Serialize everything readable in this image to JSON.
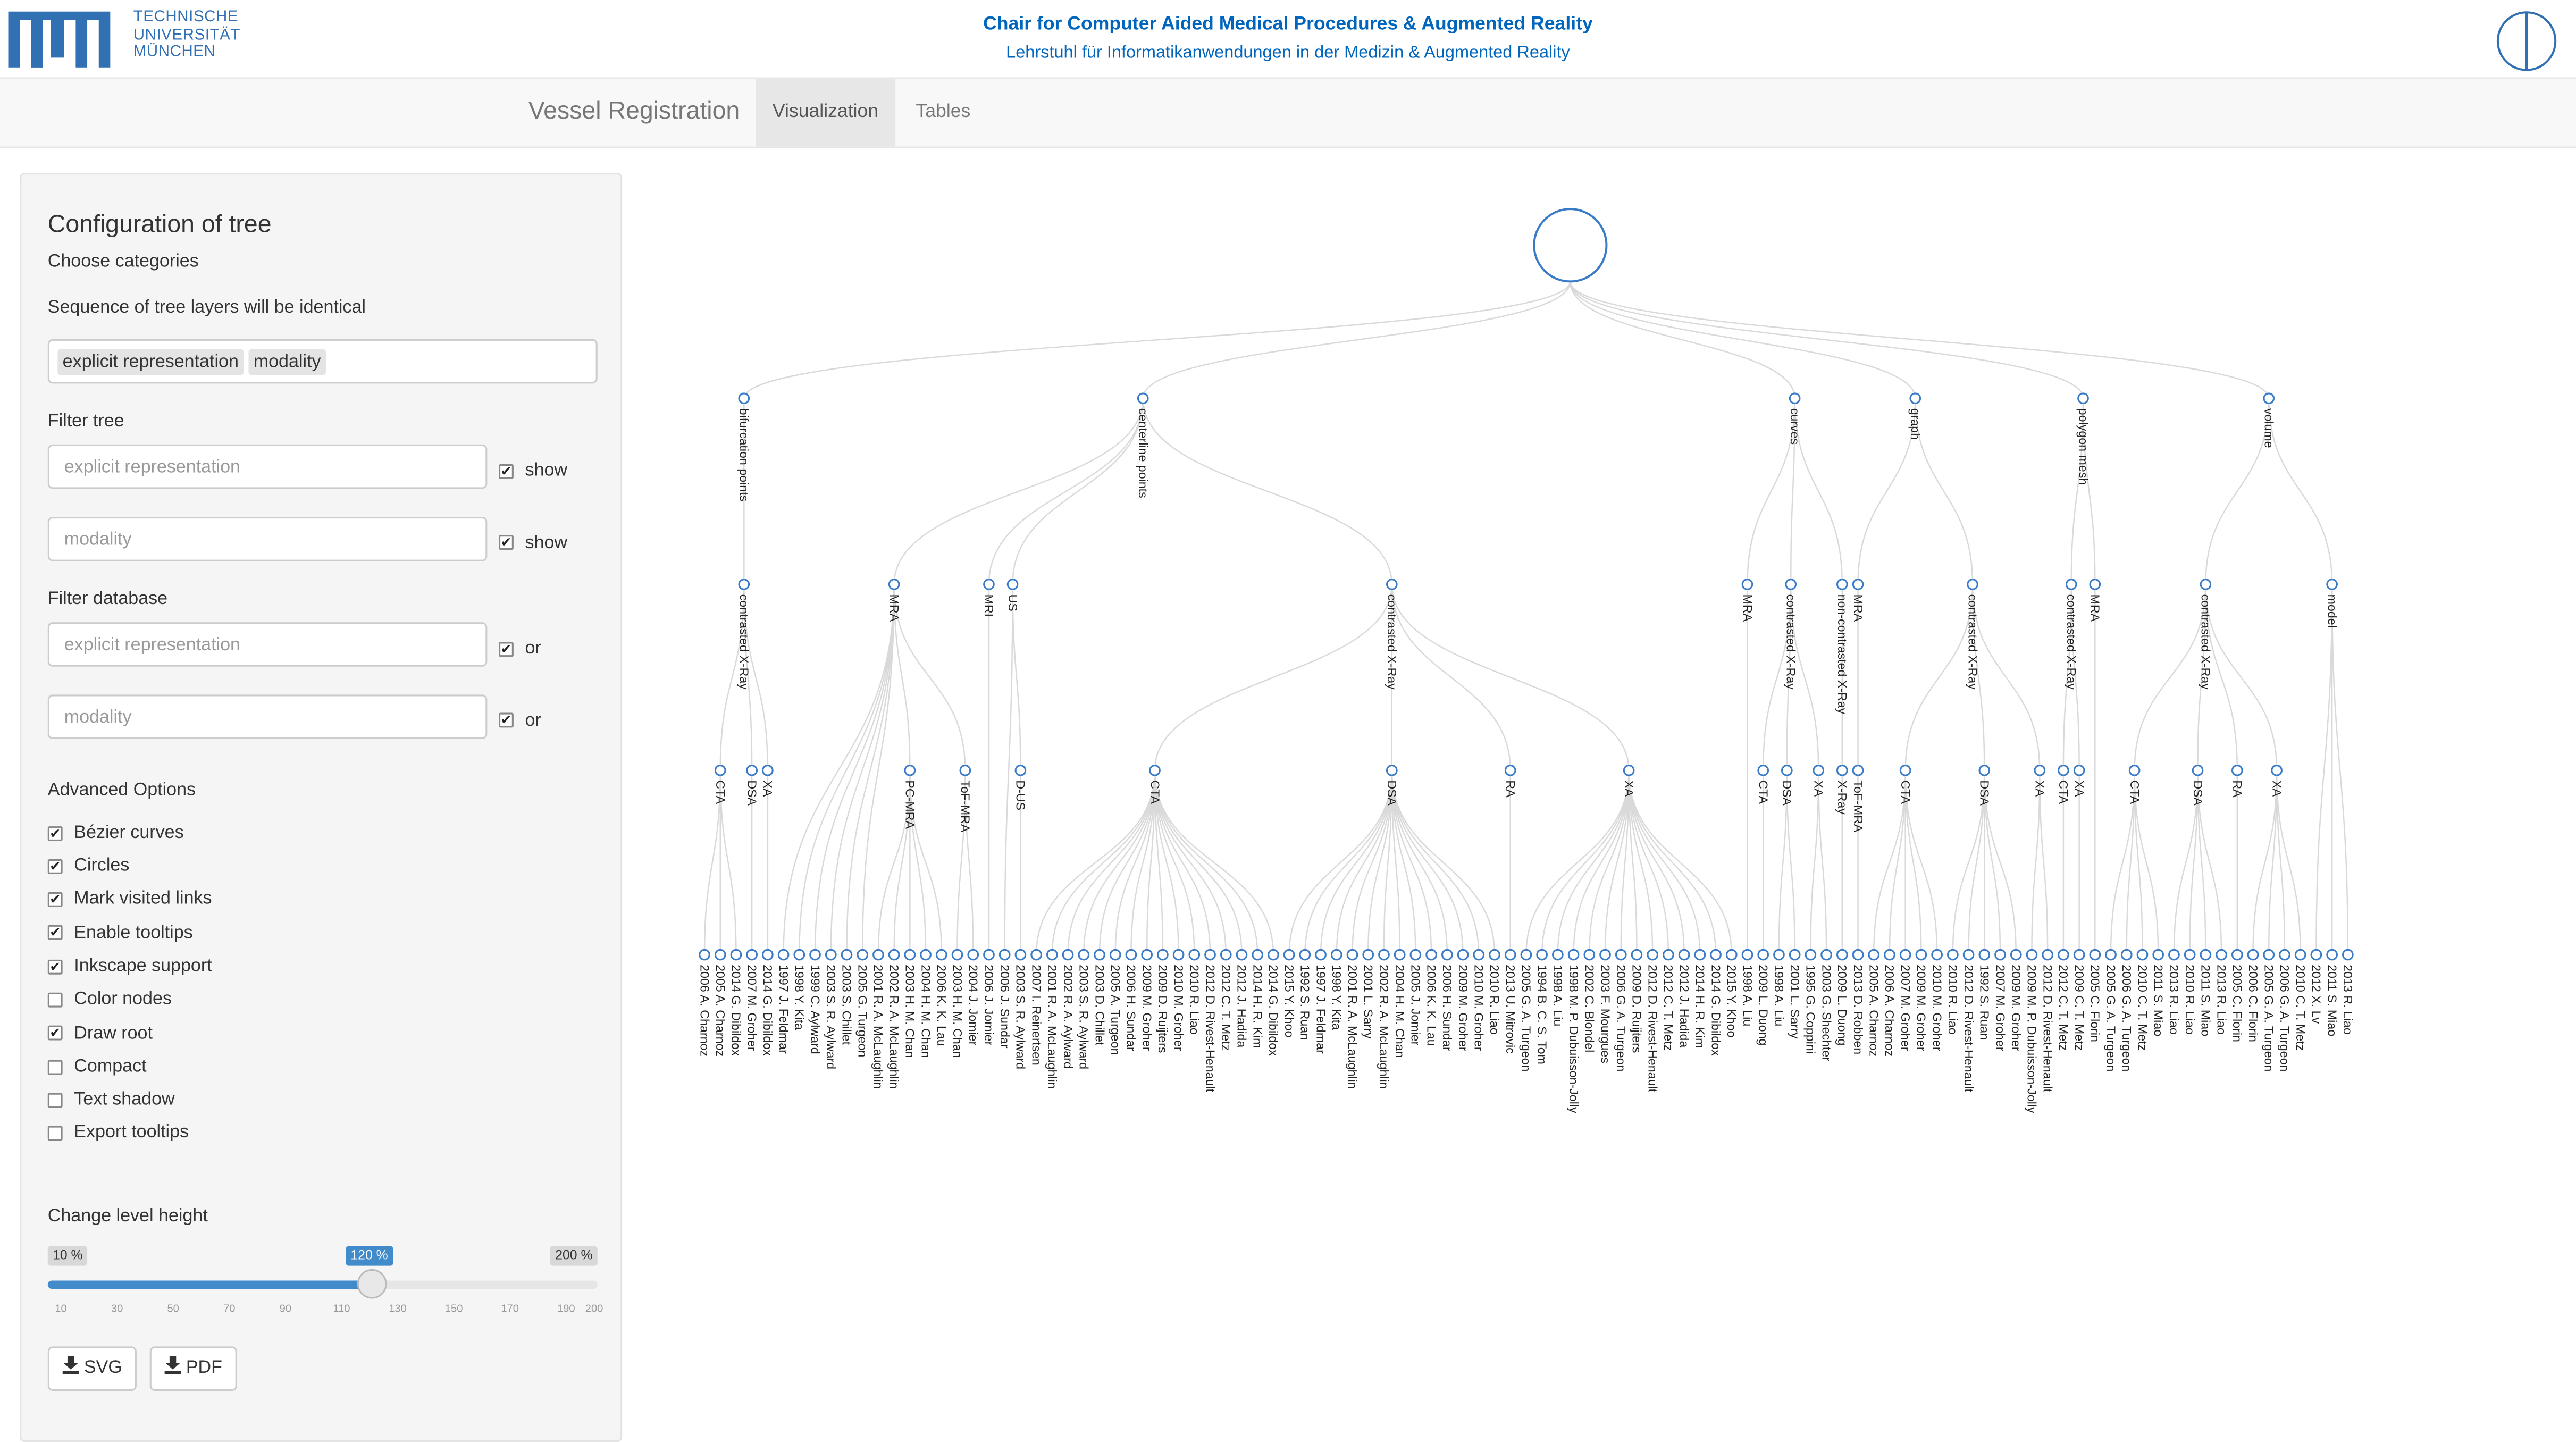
{
  "header": {
    "logo_text": [
      "TECHNISCHE",
      "UNIVERSITÄT",
      "MÜNCHEN"
    ],
    "title": "Chair for Computer Aided Medical Procedures & Augmented Reality",
    "subtitle": "Lehrstuhl für Informatikanwendungen in der Medizin & Augmented Reality"
  },
  "navbar": {
    "brand": "Vessel Registration",
    "tabs": [
      {
        "label": "Visualization",
        "active": true
      },
      {
        "label": "Tables",
        "active": false
      }
    ]
  },
  "config": {
    "title": "Configuration of tree",
    "choose_categories": "Choose categories",
    "sequence_note": "Sequence of tree layers will be identical",
    "selected_categories": [
      "explicit representation",
      "modality"
    ],
    "filter_tree_label": "Filter tree",
    "filter_tree": [
      {
        "placeholder": "explicit representation",
        "value": "",
        "check_label": "show",
        "checked": true
      },
      {
        "placeholder": "modality",
        "value": "",
        "check_label": "show",
        "checked": true
      }
    ],
    "filter_db_label": "Filter database",
    "filter_db": [
      {
        "placeholder": "explicit representation",
        "value": "",
        "check_label": "or",
        "checked": true
      },
      {
        "placeholder": "modality",
        "value": "",
        "check_label": "or",
        "checked": true
      }
    ],
    "advanced_label": "Advanced Options",
    "options": [
      {
        "label": "Bézier curves",
        "checked": true
      },
      {
        "label": "Circles",
        "checked": true
      },
      {
        "label": "Mark visited links",
        "checked": true
      },
      {
        "label": "Enable tooltips",
        "checked": true
      },
      {
        "label": "Inkscape support",
        "checked": true
      },
      {
        "label": "Color nodes",
        "checked": false
      },
      {
        "label": "Draw root",
        "checked": true
      },
      {
        "label": "Compact",
        "checked": false
      },
      {
        "label": "Text shadow",
        "checked": false
      },
      {
        "label": "Export tooltips",
        "checked": false
      }
    ],
    "level_height": {
      "label": "Change level height",
      "min": 10,
      "max": 200,
      "value": 120,
      "min_label": "10 %",
      "max_label": "200 %",
      "value_label": "120 %",
      "ticks": [
        "10",
        "30",
        "50",
        "70",
        "90",
        "110",
        "130",
        "150",
        "170",
        "190",
        "200"
      ]
    },
    "buttons": {
      "svg": "SVG",
      "pdf": "PDF"
    }
  },
  "tree": {
    "colors": {
      "node": "#3a7bc8",
      "link": "#d9d9d9",
      "accent": "#428bca",
      "tum_blue": "#3070b3"
    },
    "groups": [
      {
        "name": "bifurcation points",
        "children": [
          {
            "name": "contrasted X-Ray",
            "children": [
              {
                "name": "CTA",
                "leaves": [
                  "2006 A. Charnoz",
                  "2005 A. Charnoz",
                  "2014 G. Dibildox"
                ]
              },
              {
                "name": "DSA",
                "leaves": [
                  "2007 M. Groher"
                ]
              },
              {
                "name": "XA",
                "leaves": [
                  "2014 G. Dibildox"
                ]
              }
            ]
          }
        ]
      },
      {
        "name": "centerline points",
        "children": [
          {
            "name": "MRA",
            "children": [
              {
                "name": "",
                "leaves": [
                  "1997 J. Feldmar",
                  "1998 Y. Kita",
                  "1999 C. Aylward",
                  "2003 S. R. Aylward",
                  "2003 S. Chillet",
                  "2005 G. Turgeon"
                ]
              },
              {
                "name": "PC-MRA",
                "leaves": [
                  "2001 R. A. McLaughlin",
                  "2002 R. A. McLaughlin",
                  "2003 H. M. Chan",
                  "2004 H. M. Chan",
                  "2006 K. K. Lau"
                ]
              },
              {
                "name": "ToF-MRA",
                "leaves": [
                  "2003 H. M. Chan",
                  "2004 J. Jomier"
                ]
              }
            ]
          },
          {
            "name": "MRI",
            "children": [
              {
                "name": "",
                "leaves": [
                  "2006 J. Jomier"
                ]
              }
            ]
          },
          {
            "name": "US",
            "children": [
              {
                "name": "",
                "leaves": [
                  "2006 J. Sundar"
                ]
              },
              {
                "name": "D-US",
                "leaves": [
                  "2003 S. R. Aylward"
                ]
              }
            ]
          },
          {
            "name": "contrasted X-Ray",
            "children": [
              {
                "name": "CTA",
                "leaves": [
                  "2007 I. Reinertsen",
                  "2001 R. A. McLaughlin",
                  "2002 R. A. Aylward",
                  "2003 S. R. Aylward",
                  "2003 D. Chillet",
                  "2005 A. Turgeon",
                  "2006 H. Sundar",
                  "2009 M. Groher",
                  "2009 D. Ruijters",
                  "2010 M. Groher",
                  "2010 R. Liao",
                  "2012 D. Rivest-Henault",
                  "2012 C. T. Metz",
                  "2012 J. Hadida",
                  "2014 H. R. Kim",
                  "2014 G. Dibildox"
                ]
              },
              {
                "name": "DSA",
                "leaves": [
                  "2015 Y. Khoo",
                  "1992 S. Ruan",
                  "1997 J. Feldmar",
                  "1998 Y. Kita",
                  "2001 R. A. McLaughlin",
                  "2001 L. Sarry",
                  "2002 R. A. McLaughlin",
                  "2004 H. M. Chan",
                  "2005 J. Jomier",
                  "2006 K. K. Lau",
                  "2006 H. Sundar",
                  "2009 M. Groher",
                  "2010 M. Groher",
                  "2010 R. Liao"
                ]
              },
              {
                "name": "RA",
                "leaves": [
                  "2013 U. Mitrovic"
                ]
              },
              {
                "name": "XA",
                "leaves": [
                  "2005 G. A. Turgeon",
                  "1994 B. C. S. Tom",
                  "1998 A. Liu",
                  "1998 M. P. Dubuisson-Jolly",
                  "2002 C. Blondel",
                  "2003 F. Mourgues",
                  "2006 G. A. Turgeon",
                  "2009 D. Ruijters",
                  "2012 D. Rivest-Henault",
                  "2012 C. T. Metz",
                  "2012 J. Hadida",
                  "2014 H. R. Kim",
                  "2014 G. Dibildox",
                  "2015 Y. Khoo"
                ]
              }
            ]
          }
        ]
      },
      {
        "name": "curves",
        "children": [
          {
            "name": "MRA",
            "children": [
              {
                "name": "",
                "leaves": [
                  "1998 A. Liu"
                ]
              }
            ]
          },
          {
            "name": "contrasted X-Ray",
            "children": [
              {
                "name": "CTA",
                "leaves": [
                  "2009 L. Duong"
                ]
              },
              {
                "name": "DSA",
                "leaves": [
                  "1998 A. Liu",
                  "2001 L. Sarry"
                ]
              },
              {
                "name": "XA",
                "leaves": [
                  "1995 G. Coppini",
                  "2003 G. Shechter"
                ]
              }
            ]
          },
          {
            "name": "non-contrasted X-Ray",
            "children": [
              {
                "name": "X-Ray",
                "leaves": [
                  "2009 L. Duong"
                ]
              }
            ]
          }
        ]
      },
      {
        "name": "graph",
        "children": [
          {
            "name": "MRA",
            "children": [
              {
                "name": "ToF-MRA",
                "leaves": [
                  "2013 D. Robben"
                ]
              }
            ]
          },
          {
            "name": "contrasted X-Ray",
            "children": [
              {
                "name": "CTA",
                "leaves": [
                  "2005 A. Charnoz",
                  "2006 A. Charnoz",
                  "2007 M. Groher",
                  "2009 M. Groher",
                  "2010 M. Groher"
                ]
              },
              {
                "name": "DSA",
                "leaves": [
                  "2010 R. Liao",
                  "2012 D. Rivest-Henault",
                  "1992 S. Ruan",
                  "2007 M. Groher",
                  "2009 M. Groher"
                ]
              },
              {
                "name": "XA",
                "leaves": [
                  "2009 M. P. Dubuisson-Jolly",
                  "2012 D. Rivest-Henault"
                ]
              }
            ]
          }
        ]
      },
      {
        "name": "polygon mesh",
        "children": [
          {
            "name": "contrasted X-Ray",
            "children": [
              {
                "name": "CTA",
                "leaves": [
                  "2012 C. T. Metz"
                ]
              },
              {
                "name": "XA",
                "leaves": [
                  "2009 C. T. Metz"
                ]
              }
            ]
          },
          {
            "name": "MRA",
            "children": [
              {
                "name": "",
                "leaves": [
                  "2005 C. Florin"
                ]
              }
            ]
          }
        ]
      },
      {
        "name": "volume",
        "children": [
          {
            "name": "contrasted X-Ray",
            "children": [
              {
                "name": "CTA",
                "leaves": [
                  "2005 G. A. Turgeon",
                  "2006 G. A. Turgeon",
                  "2010 C. T. Metz",
                  "2011 S. Miao"
                ]
              },
              {
                "name": "DSA",
                "leaves": [
                  "2013 R. Liao",
                  "2010 R. Liao",
                  "2011 S. Miao",
                  "2013 R. Liao"
                ]
              },
              {
                "name": "RA",
                "leaves": [
                  "2005 C. Florin"
                ]
              },
              {
                "name": "XA",
                "leaves": [
                  "2006 C. Florin",
                  "2005 G. A. Turgeon",
                  "2006 G. A. Turgeon",
                  "2010 C. T. Metz"
                ]
              }
            ]
          },
          {
            "name": "model",
            "children": [
              {
                "name": "",
                "leaves": [
                  "2012 X. Lv",
                  "2011 S. Miao",
                  "2013 R. Liao"
                ]
              }
            ]
          }
        ]
      }
    ]
  }
}
